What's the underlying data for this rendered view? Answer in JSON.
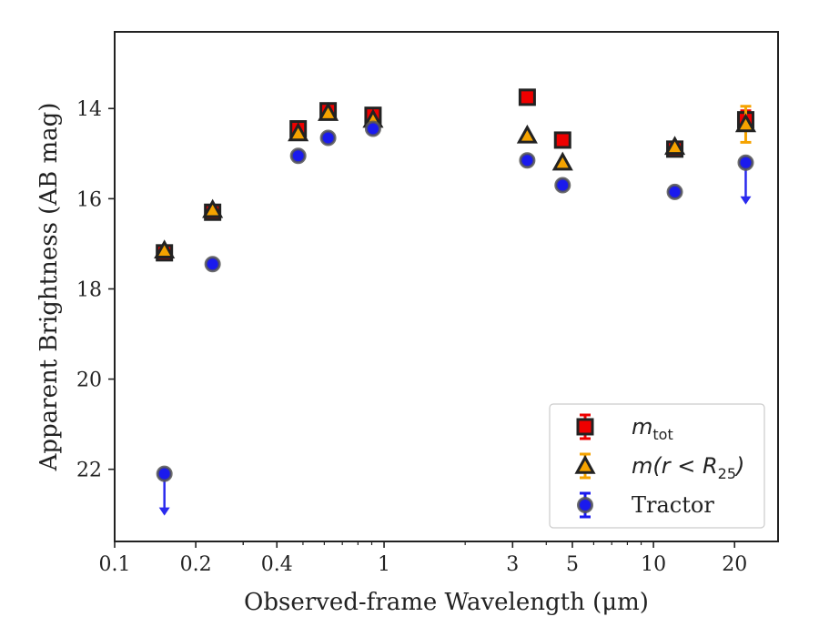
{
  "chart_data": {
    "type": "scatter",
    "xlabel": "Observed-frame Wavelength (μm)",
    "ylabel": "Apparent Brightness (AB mag)",
    "xscale": "log",
    "xlim": [
      0.1,
      29
    ],
    "ylim": [
      23.6,
      12.3
    ],
    "y_inverted": true,
    "x_ticks": [
      0.1,
      0.2,
      0.4,
      1,
      3,
      5,
      10,
      20
    ],
    "x_tick_labels": [
      "0.1",
      "0.2",
      "0.4",
      "1",
      "3",
      "5",
      "10",
      "20"
    ],
    "y_ticks": [
      14,
      16,
      18,
      20,
      22
    ],
    "y_tick_labels": [
      "14",
      "16",
      "18",
      "20",
      "22"
    ],
    "legend_placement": "lower-right",
    "series": [
      {
        "name": "m_tot",
        "legend_label": "m",
        "legend_label_sub": "tot",
        "marker": "square",
        "color": "#ee0000",
        "edge": "#222222",
        "points": [
          {
            "x": 0.153,
            "y": 17.2
          },
          {
            "x": 0.231,
            "y": 16.3
          },
          {
            "x": 0.48,
            "y": 14.45
          },
          {
            "x": 0.62,
            "y": 14.05
          },
          {
            "x": 0.91,
            "y": 14.15
          },
          {
            "x": 3.4,
            "y": 13.75
          },
          {
            "x": 4.6,
            "y": 14.7
          },
          {
            "x": 12.0,
            "y": 14.9
          },
          {
            "x": 22.0,
            "y": 14.25,
            "yerr": 0.2
          }
        ]
      },
      {
        "name": "m(r < R25)",
        "legend_label": "m(r < R",
        "legend_label_sub": "25",
        "legend_label_end": ")",
        "marker": "triangle",
        "color": "#f5a300",
        "edge": "#222222",
        "points": [
          {
            "x": 0.153,
            "y": 17.15
          },
          {
            "x": 0.231,
            "y": 16.25
          },
          {
            "x": 0.48,
            "y": 14.55
          },
          {
            "x": 0.62,
            "y": 14.1
          },
          {
            "x": 0.91,
            "y": 14.25
          },
          {
            "x": 3.4,
            "y": 14.6
          },
          {
            "x": 4.6,
            "y": 15.2
          },
          {
            "x": 12.0,
            "y": 14.85
          },
          {
            "x": 22.0,
            "y": 14.35,
            "yerr": 0.4
          }
        ]
      },
      {
        "name": "Tractor",
        "legend_label": "Tractor",
        "marker": "circle",
        "color": "#1a1aee",
        "edge": "#555555",
        "points": [
          {
            "x": 0.153,
            "y": 22.1,
            "upper_limit": true
          },
          {
            "x": 0.231,
            "y": 17.45
          },
          {
            "x": 0.48,
            "y": 15.05
          },
          {
            "x": 0.62,
            "y": 14.65
          },
          {
            "x": 0.91,
            "y": 14.45
          },
          {
            "x": 3.4,
            "y": 15.15
          },
          {
            "x": 4.6,
            "y": 15.7
          },
          {
            "x": 12.0,
            "y": 15.85
          },
          {
            "x": 22.0,
            "y": 15.2,
            "upper_limit": true
          }
        ]
      }
    ]
  }
}
